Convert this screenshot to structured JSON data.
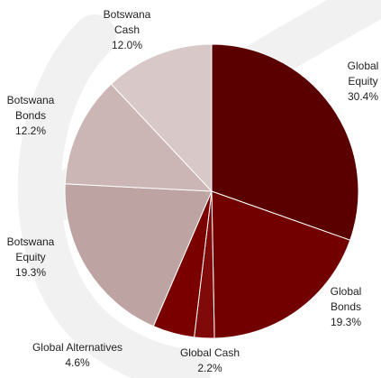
{
  "chart_data": {
    "type": "pie",
    "slices": [
      {
        "name": [
          "Global",
          "Equity"
        ],
        "value": 30.4,
        "label": "30.4%",
        "color": "#5a0000"
      },
      {
        "name": [
          "Global",
          "Bonds"
        ],
        "value": 19.3,
        "label": "19.3%",
        "color": "#730000"
      },
      {
        "name": [
          "Global Cash"
        ],
        "value": 2.2,
        "label": "2.2%",
        "color": "#800a0a"
      },
      {
        "name": [
          "Global Alternatives"
        ],
        "value": 4.6,
        "label": "4.6%",
        "color": "#7a0000"
      },
      {
        "name": [
          "Botswana",
          "Equity"
        ],
        "value": 19.3,
        "label": "19.3%",
        "color": "#bea3a3"
      },
      {
        "name": [
          "Botswana",
          "Bonds"
        ],
        "value": 12.2,
        "label": "12.2%",
        "color": "#cbb5b5"
      },
      {
        "name": [
          "Botswana",
          "Cash"
        ],
        "value": 12.0,
        "label": "12.0%",
        "color": "#d8c8c8"
      }
    ],
    "start_angle_deg": 0,
    "direction": "clockwise",
    "slice_edge_color": "#ffffff"
  }
}
